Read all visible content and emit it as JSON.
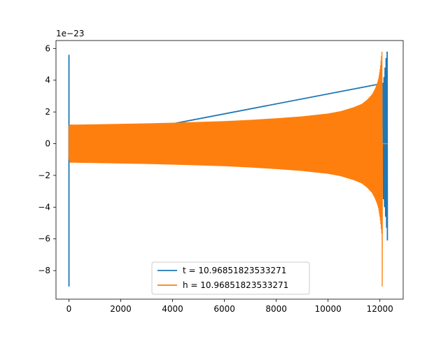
{
  "chart_data": {
    "type": "line",
    "title": "",
    "xlabel": "",
    "ylabel": "",
    "y_offset_text": "1e−23",
    "xlim": [
      -500,
      12900
    ],
    "ylim": [
      -9.8,
      6.5
    ],
    "x_ticks": [
      0,
      2000,
      4000,
      6000,
      8000,
      10000,
      12000
    ],
    "x_tick_labels": [
      "0",
      "2000",
      "4000",
      "6000",
      "8000",
      "10000",
      "12000"
    ],
    "y_ticks": [
      -8,
      -6,
      -4,
      -2,
      0,
      2,
      4,
      6
    ],
    "y_tick_labels": [
      "−8",
      "−6",
      "−4",
      "−2",
      "0",
      "2",
      "4",
      "6"
    ],
    "grid": false,
    "legend_position": "bottom-center",
    "series": [
      {
        "name": "t = 10.96851823533271",
        "color": "#1f77b4",
        "x": [
          0,
          0,
          0,
          12120,
          12140,
          12160,
          12180,
          12200,
          12220,
          12240,
          12260,
          12280,
          12290
        ],
        "values": [
          5.6,
          -9.0,
          0,
          3.8,
          -3.5,
          4.2,
          -4.0,
          4.8,
          -4.6,
          5.4,
          -5.3,
          5.8,
          -6.1
        ]
      },
      {
        "name": "h = 10.96851823533271",
        "color": "#ff7f0e",
        "x": [
          0,
          0,
          20,
          200,
          1000,
          2000,
          3000,
          4000,
          5000,
          6000,
          7000,
          8000,
          9000,
          10000,
          10500,
          11000,
          11300,
          11500,
          11700,
          11800,
          11900,
          11950,
          12000,
          12030,
          12060,
          12080,
          12090,
          12100,
          12150,
          12300
        ],
        "values": [
          -1.0,
          1.0,
          1.2,
          1.2,
          1.22,
          1.25,
          1.28,
          1.32,
          1.37,
          1.42,
          1.5,
          1.6,
          1.72,
          1.9,
          2.05,
          2.3,
          2.5,
          2.75,
          3.1,
          3.4,
          3.8,
          4.1,
          4.6,
          5.0,
          5.5,
          5.8,
          -9.0,
          0,
          0,
          0
        ]
      }
    ]
  }
}
